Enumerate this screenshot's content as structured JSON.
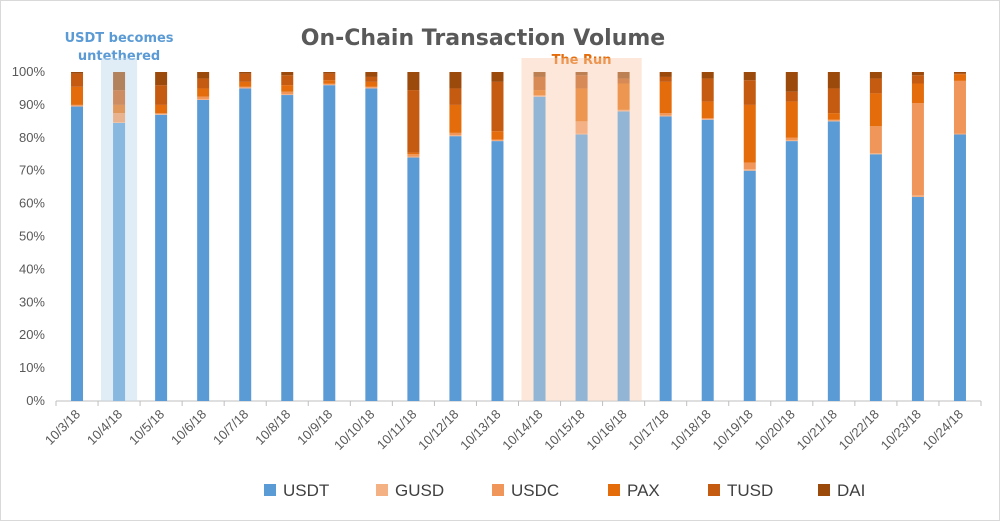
{
  "chart_data": {
    "type": "bar",
    "stacked": true,
    "percent": true,
    "title": "On-Chain Transaction Volume",
    "xlabel": "",
    "ylabel": "",
    "ylim": [
      0,
      100
    ],
    "y_ticks": [
      "0%",
      "10%",
      "20%",
      "30%",
      "40%",
      "50%",
      "60%",
      "70%",
      "80%",
      "90%",
      "100%"
    ],
    "grid": false,
    "legend_position": "bottom",
    "categories": [
      "10/3/18",
      "10/4/18",
      "10/5/18",
      "10/6/18",
      "10/7/18",
      "10/8/18",
      "10/9/18",
      "10/10/18",
      "10/11/18",
      "10/12/18",
      "10/13/18",
      "10/14/18",
      "10/15/18",
      "10/16/18",
      "10/17/18",
      "10/18/18",
      "10/19/18",
      "10/20/18",
      "10/21/18",
      "10/22/18",
      "10/23/18",
      "10/24/18"
    ],
    "series": [
      {
        "name": "USDT",
        "color": "#5b9bd5",
        "values": [
          89.5,
          84.5,
          87,
          91.5,
          95,
          93,
          96,
          95,
          74,
          80.5,
          79,
          92.5,
          81,
          88,
          86.5,
          85.5,
          70,
          79,
          85,
          75,
          62,
          81
        ]
      },
      {
        "name": "GUSD",
        "color": "#f4b183",
        "values": [
          0.2,
          0.3,
          0.2,
          0.3,
          0.2,
          0.3,
          0.2,
          0.2,
          0.3,
          0.3,
          0.2,
          0.2,
          0.3,
          0.2,
          0.3,
          0.2,
          0.5,
          0.3,
          0.2,
          0.3,
          0.5,
          0.3
        ]
      },
      {
        "name": "USDC",
        "color": "#f0965a",
        "values": [
          0.3,
          2.7,
          0.3,
          0.7,
          0.3,
          0.7,
          0.3,
          0.3,
          0.7,
          0.7,
          0.3,
          0.3,
          3.7,
          0.3,
          0.7,
          0.3,
          2,
          0.7,
          0.3,
          8.2,
          28,
          16
        ]
      },
      {
        "name": "PAX",
        "color": "#e46c0a",
        "values": [
          5.5,
          2.5,
          2.5,
          2.5,
          1.5,
          2,
          1,
          1.5,
          0.5,
          8.5,
          2.5,
          1.5,
          10,
          8,
          9.5,
          5,
          17.5,
          11,
          2,
          10,
          6,
          2
        ]
      },
      {
        "name": "TUSD",
        "color": "#c55a11",
        "values": [
          4,
          4.5,
          6,
          3,
          2.5,
          3,
          2,
          1.5,
          19,
          5,
          15,
          4,
          4,
          1.5,
          1.5,
          7,
          7.5,
          3,
          7.5,
          4.5,
          2.5,
          0.2
        ]
      },
      {
        "name": "DAI",
        "color": "#9c4a0c",
        "values": [
          0.5,
          5.5,
          4,
          2,
          0.5,
          1,
          0.5,
          1.5,
          5.5,
          5,
          3,
          1.5,
          1,
          2,
          1.5,
          2,
          2.5,
          6,
          5,
          2,
          1,
          0.5
        ]
      }
    ],
    "annotations": [
      {
        "text_lines": [
          "USDT becomes",
          "untethered"
        ],
        "range": [
          "10/4/18",
          "10/4/18"
        ],
        "color": "#5b9bd5",
        "fill": "#ddebf7"
      },
      {
        "text_lines": [
          "The Run"
        ],
        "range": [
          "10/14/18",
          "10/16/18"
        ],
        "color": "#e46c0a",
        "fill": "#fbe5d6"
      }
    ]
  }
}
